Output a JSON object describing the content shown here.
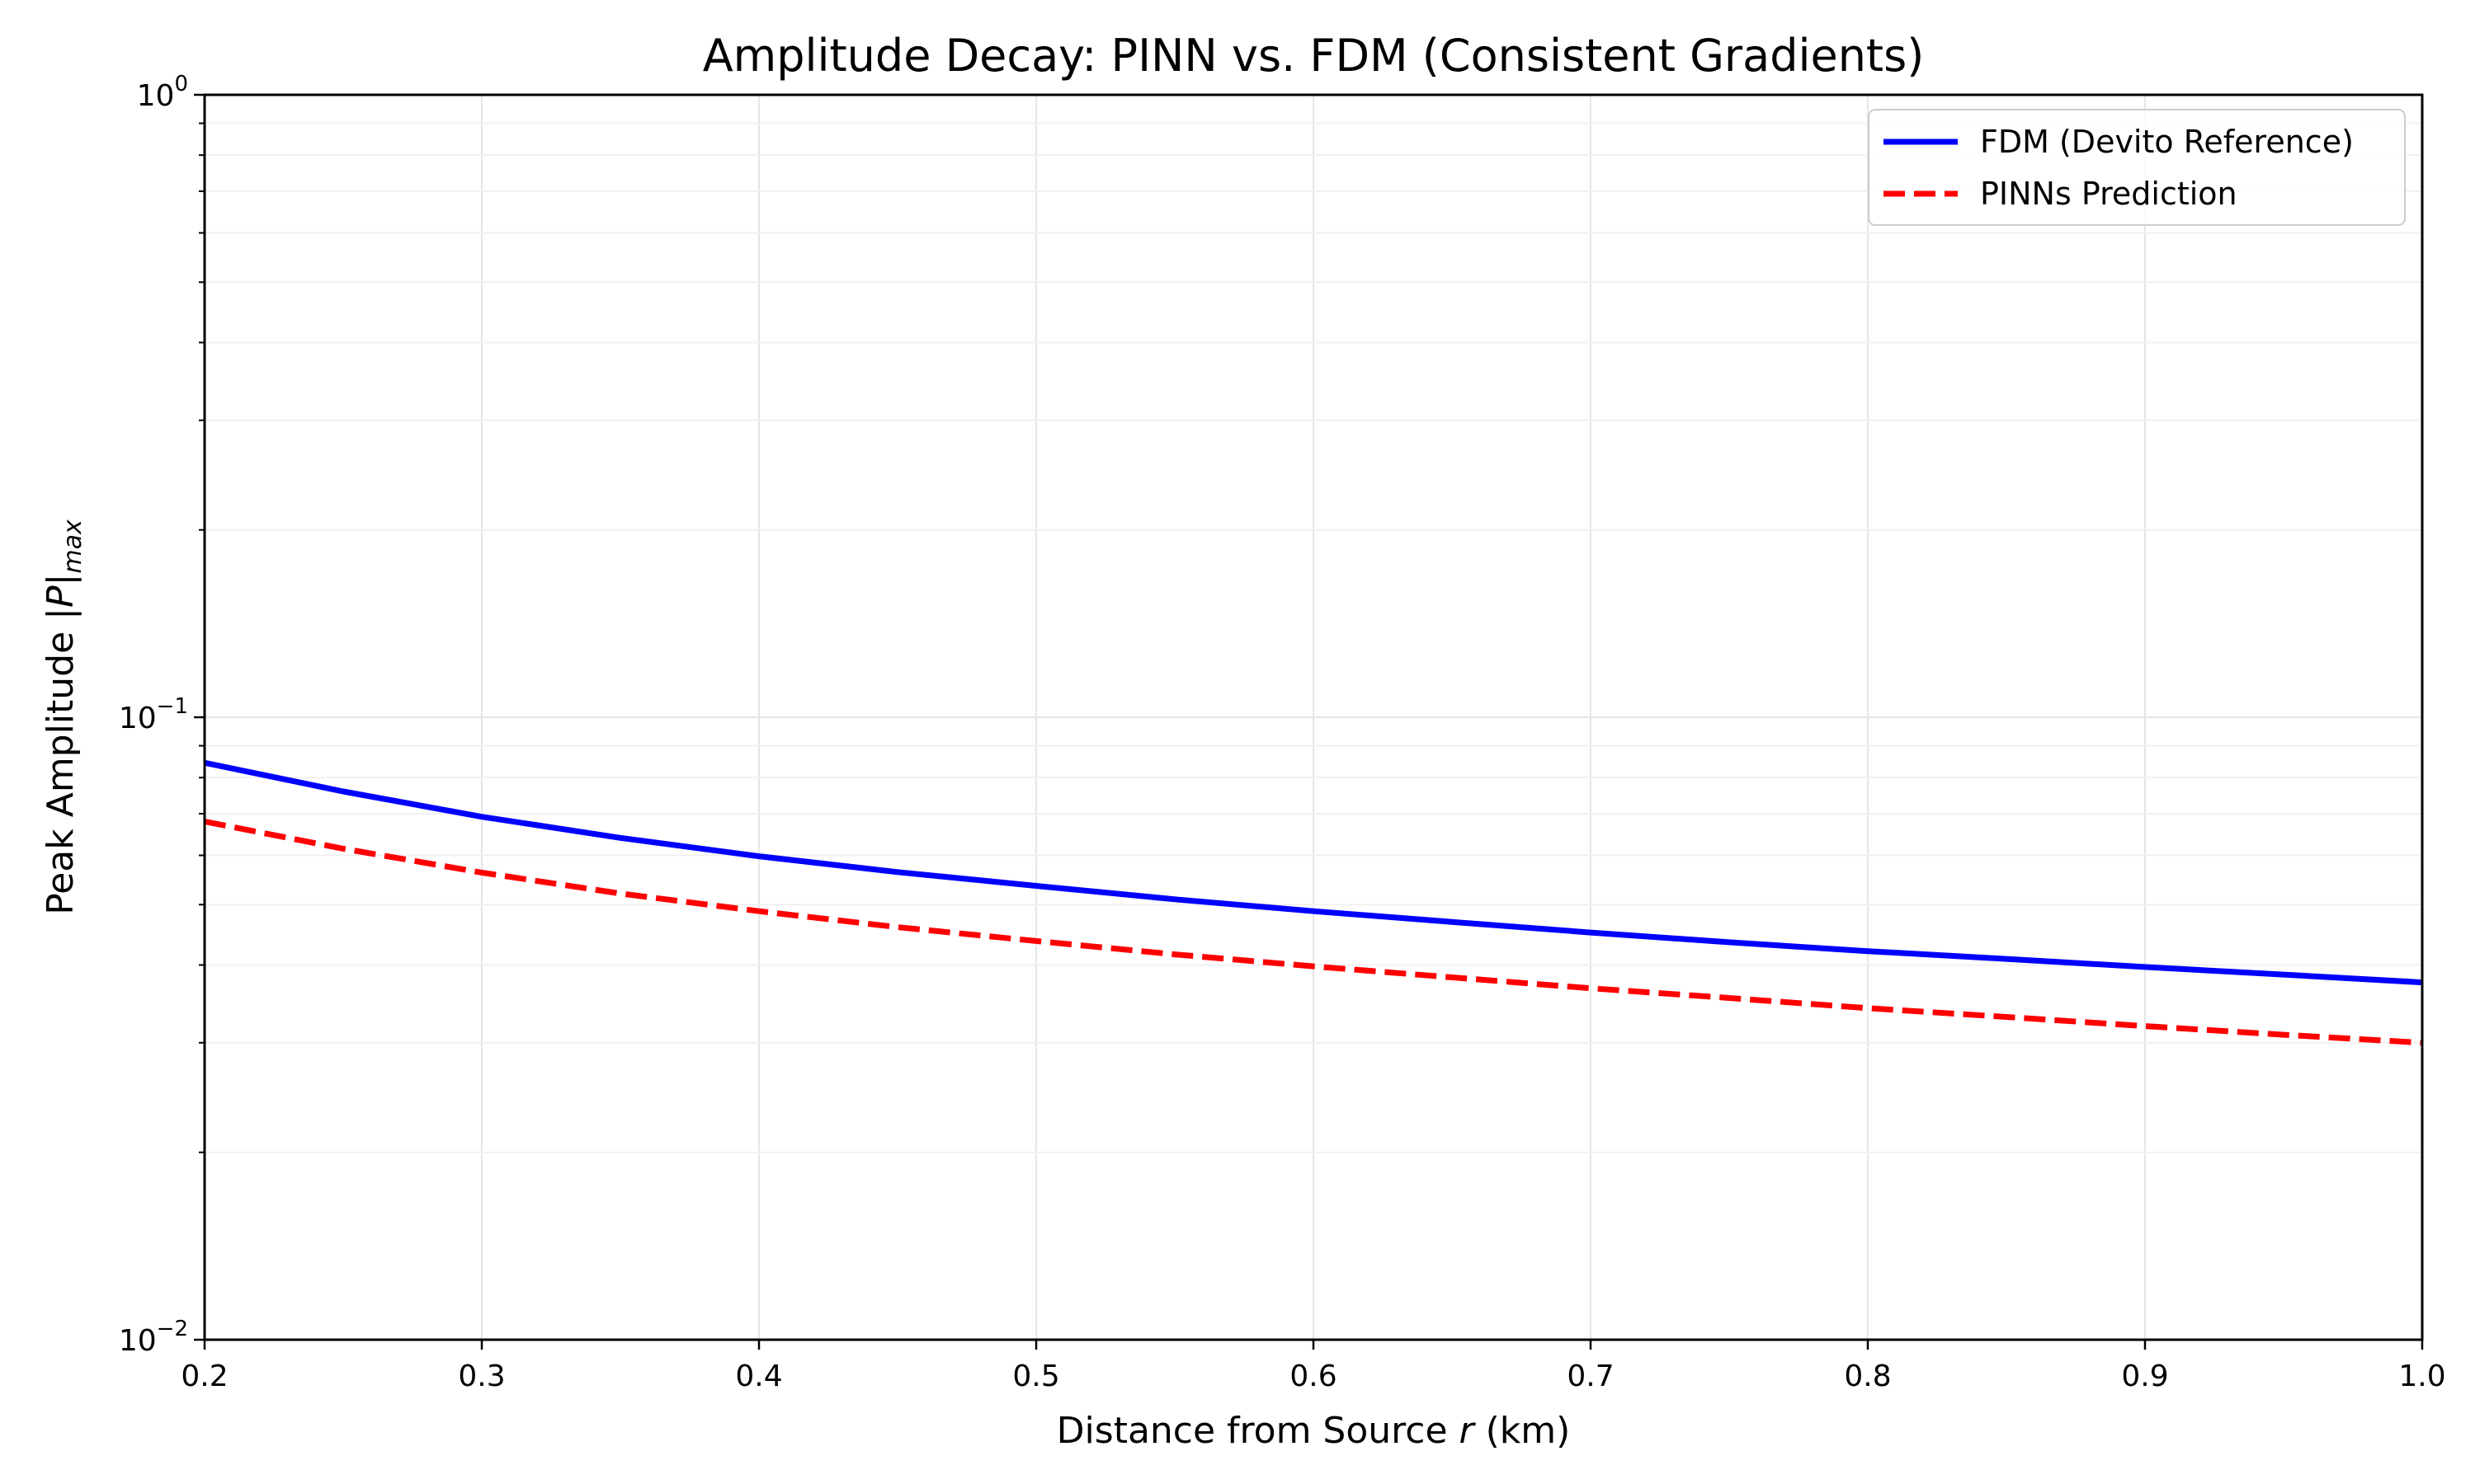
{
  "chart_data": {
    "type": "line",
    "title": "Amplitude Decay: PINN vs. FDM (Consistent Gradients)",
    "xlabel": {
      "pre": "Distance from Source ",
      "var": "r",
      "post": " (km)"
    },
    "ylabel": {
      "pre": "Peak Amplitude |",
      "var": "P",
      "post": "|",
      "sub": "max"
    },
    "xlim": [
      0.2,
      1.0
    ],
    "ylim": [
      0.01,
      1.0
    ],
    "yscale": "log",
    "grid": true,
    "legend_position": "top-right",
    "x_ticks": [
      "0.2",
      "0.3",
      "0.4",
      "0.5",
      "0.6",
      "0.7",
      "0.8",
      "0.9",
      "1.0"
    ],
    "y_ticks": [
      {
        "value": 0.01,
        "base": "10",
        "exp": "−2"
      },
      {
        "value": 0.1,
        "base": "10",
        "exp": "−1"
      },
      {
        "value": 1.0,
        "base": "10",
        "exp": "0"
      }
    ],
    "x": [
      0.2,
      0.25,
      0.3,
      0.35,
      0.4,
      0.45,
      0.5,
      0.55,
      0.6,
      0.65,
      0.7,
      0.75,
      0.8,
      0.85,
      0.9,
      0.95,
      1.0
    ],
    "series": [
      {
        "name": "FDM (Devito Reference)",
        "color": "#0000ff",
        "style": "solid",
        "values": [
          0.0845,
          0.076,
          0.0692,
          0.064,
          0.0598,
          0.0564,
          0.0536,
          0.051,
          0.0488,
          0.0469,
          0.0451,
          0.0435,
          0.0421,
          0.0409,
          0.0397,
          0.0386,
          0.0375
        ]
      },
      {
        "name": "PINNs Prediction",
        "color": "#ff0000",
        "style": "dashed",
        "values": [
          0.068,
          0.0615,
          0.0563,
          0.0521,
          0.0488,
          0.046,
          0.0437,
          0.0416,
          0.0398,
          0.0382,
          0.0367,
          0.0354,
          0.0341,
          0.033,
          0.0319,
          0.0309,
          0.03
        ]
      }
    ]
  }
}
